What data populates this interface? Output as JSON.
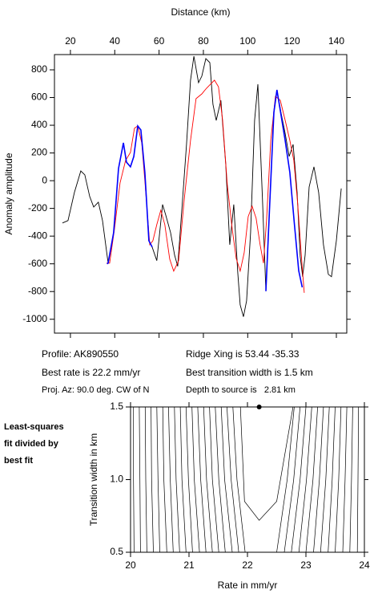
{
  "chart_data": [
    {
      "type": "line",
      "x_label": "Distance (km)",
      "y_label": "Anomaly amplitude",
      "x_axis": "top",
      "xlim": [
        12.8,
        144.7
      ],
      "ylim": [
        -1100,
        910
      ],
      "xticks": [
        20,
        40,
        60,
        80,
        100,
        120,
        140
      ],
      "yticks": [
        800,
        600,
        400,
        200,
        0,
        -200,
        -400,
        -600,
        -800,
        -1000
      ],
      "series": [
        {
          "color": "#000000",
          "x": [
            16.4,
            18.9,
            21.8,
            24.7,
            26.5,
            28.7,
            30.5,
            32.6,
            34.5,
            37,
            39.5,
            41.7,
            43.9,
            45.3,
            47.1,
            48.6,
            50.4,
            51.8,
            53.6,
            55.4,
            56.9,
            59,
            61.6,
            63,
            65.2,
            67,
            68.4,
            70.2,
            72.4,
            74.2,
            75.7,
            77.8,
            79.3,
            81.1,
            82.9,
            84.3,
            85.8,
            87.9,
            90.1,
            91.9,
            93.7,
            95.5,
            96.6,
            98.1,
            99.5,
            101.3,
            103.1,
            104.6,
            106.7,
            108.2,
            110,
            111.8,
            113.2,
            115,
            116.8,
            118.7,
            120.5,
            122.3,
            123.7,
            124.8,
            125.9,
            127.7,
            129.9,
            132,
            134.2,
            136.4,
            137.8,
            140,
            142.2
          ],
          "values": [
            -305,
            -288,
            -85,
            70,
            42,
            -114,
            -190,
            -155,
            -288,
            -595,
            -375,
            88,
            273,
            134,
            100,
            175,
            395,
            366,
            59,
            -433,
            -479,
            -577,
            -172,
            -247,
            -375,
            -537,
            -618,
            -230,
            262,
            725,
            898,
            707,
            754,
            881,
            852,
            551,
            435,
            580,
            117,
            -462,
            -172,
            -664,
            -896,
            -982,
            -867,
            -375,
            435,
            696,
            -143,
            -797,
            -143,
            493,
            655,
            493,
            349,
            175,
            262,
            -85,
            -548,
            -693,
            -537,
            -45,
            100,
            -85,
            -462,
            -676,
            -693,
            -433,
            -56
          ]
        },
        {
          "color": "#ff0000",
          "x": [
            36.3,
            37.7,
            39.9,
            42.4,
            44.9,
            47.1,
            48.9,
            50.4,
            52.2,
            53.6,
            55.8,
            57.2,
            59,
            60.8,
            62.6,
            64.8,
            66.6,
            68.8,
            71.3,
            74.2,
            76.7,
            79.3,
            81.4,
            83.2,
            85,
            86.8,
            88.7,
            90.8,
            93,
            94.8,
            96.6,
            98.4,
            100.2,
            102,
            103.8,
            105.6,
            107.1,
            108.5,
            110.4,
            112.5,
            114.7,
            116.9,
            119,
            120.8,
            122.6,
            124.5,
            125.5
          ],
          "values": [
            -595,
            -595,
            -346,
            -16,
            146,
            204,
            378,
            395,
            273,
            -2,
            -462,
            -433,
            -317,
            -213,
            -317,
            -566,
            -653,
            -577,
            -143,
            291,
            592,
            626,
            667,
            696,
            725,
            678,
            435,
            -28,
            -346,
            -560,
            -653,
            -520,
            -259,
            -184,
            -271,
            -462,
            -595,
            -288,
            291,
            609,
            580,
            435,
            291,
            146,
            -172,
            -606,
            -809
          ]
        },
        {
          "color": "#0000ff",
          "x": [
            36.5,
            37,
            39.5,
            41.7,
            43.9,
            45.3,
            47.1,
            48.6,
            50.4,
            51.8,
            53.6,
            55.4,
            56.9,
            80,
            108.2,
            110,
            111.8,
            113.2,
            116.8,
            119,
            121,
            123,
            124.6
          ],
          "values": [
            -600,
            -595,
            -375,
            88,
            273,
            134,
            100,
            175,
            395,
            366,
            59,
            -433,
            -479,
            null,
            -797,
            -143,
            493,
            655,
            300,
            60,
            -300,
            -650,
            -770
          ]
        }
      ]
    },
    {
      "type": "contour",
      "x_label": "Rate in mm/yr",
      "y_label": "Transition width in km",
      "x_axis": "bottom",
      "xlim": [
        20,
        24
      ],
      "ylim": [
        0.5,
        1.5
      ],
      "xticks": [
        20,
        21,
        22,
        23,
        24
      ],
      "yticks": [
        0.5,
        {
          "value": 1.0,
          "label": "1.0"
        },
        1.5
      ],
      "color": "#000000",
      "contour_y": [
        0.5,
        1.0,
        1.5
      ],
      "contours": [
        [
          20.06,
          20.05,
          20.05
        ],
        [
          20.17,
          20.16,
          20.15
        ],
        [
          20.28,
          20.26,
          20.25
        ],
        [
          20.39,
          20.36,
          20.35
        ],
        [
          20.5,
          20.47,
          20.45
        ],
        [
          20.62,
          20.57,
          20.55
        ],
        [
          20.73,
          20.68,
          20.65
        ],
        [
          20.84,
          20.78,
          20.75
        ],
        [
          20.95,
          20.88,
          20.85
        ],
        [
          21.06,
          20.99,
          20.95
        ],
        [
          21.18,
          21.09,
          21.05
        ],
        [
          21.29,
          21.2,
          21.15
        ],
        [
          21.4,
          21.3,
          21.25
        ],
        [
          21.51,
          21.4,
          21.35
        ],
        [
          21.62,
          21.51,
          21.45
        ],
        [
          21.74,
          21.61,
          21.55
        ],
        [
          21.85,
          21.72,
          21.65
        ],
        [
          21.96,
          21.82,
          21.75
        ],
        [
          22.5,
          22.68,
          22.8
        ],
        [
          22.63,
          22.79,
          22.9
        ],
        [
          22.75,
          22.9,
          23.0
        ],
        [
          22.88,
          23.01,
          23.1
        ],
        [
          23.0,
          23.12,
          23.2
        ],
        [
          23.13,
          23.23,
          23.3
        ],
        [
          23.25,
          23.34,
          23.4
        ],
        [
          23.38,
          23.45,
          23.5
        ],
        [
          23.5,
          23.56,
          23.6
        ],
        [
          23.63,
          23.67,
          23.7
        ],
        [
          23.75,
          23.78,
          23.8
        ],
        [
          23.88,
          23.89,
          23.9
        ]
      ],
      "minimum_contour": {
        "x": [
          21.88,
          21.95,
          22.2,
          22.5,
          22.78
        ],
        "y": [
          1.5,
          0.85,
          0.72,
          0.85,
          1.5
        ]
      },
      "best_fit": {
        "x": 22.2,
        "y": 1.5
      }
    }
  ],
  "info": {
    "profile": "Profile: AK890550",
    "best_rate": "Best rate is 22.2 mm/yr",
    "projection": "Proj. Az: 90.0 deg. CW of N",
    "ridge": "Ridge Xing is 53.44 -35.33",
    "transition": "Best transition width is 1.5 km",
    "depth": "Depth to source is   2.81 km"
  },
  "side_note": [
    "Least-squares",
    "fit divided by",
    "best fit"
  ]
}
